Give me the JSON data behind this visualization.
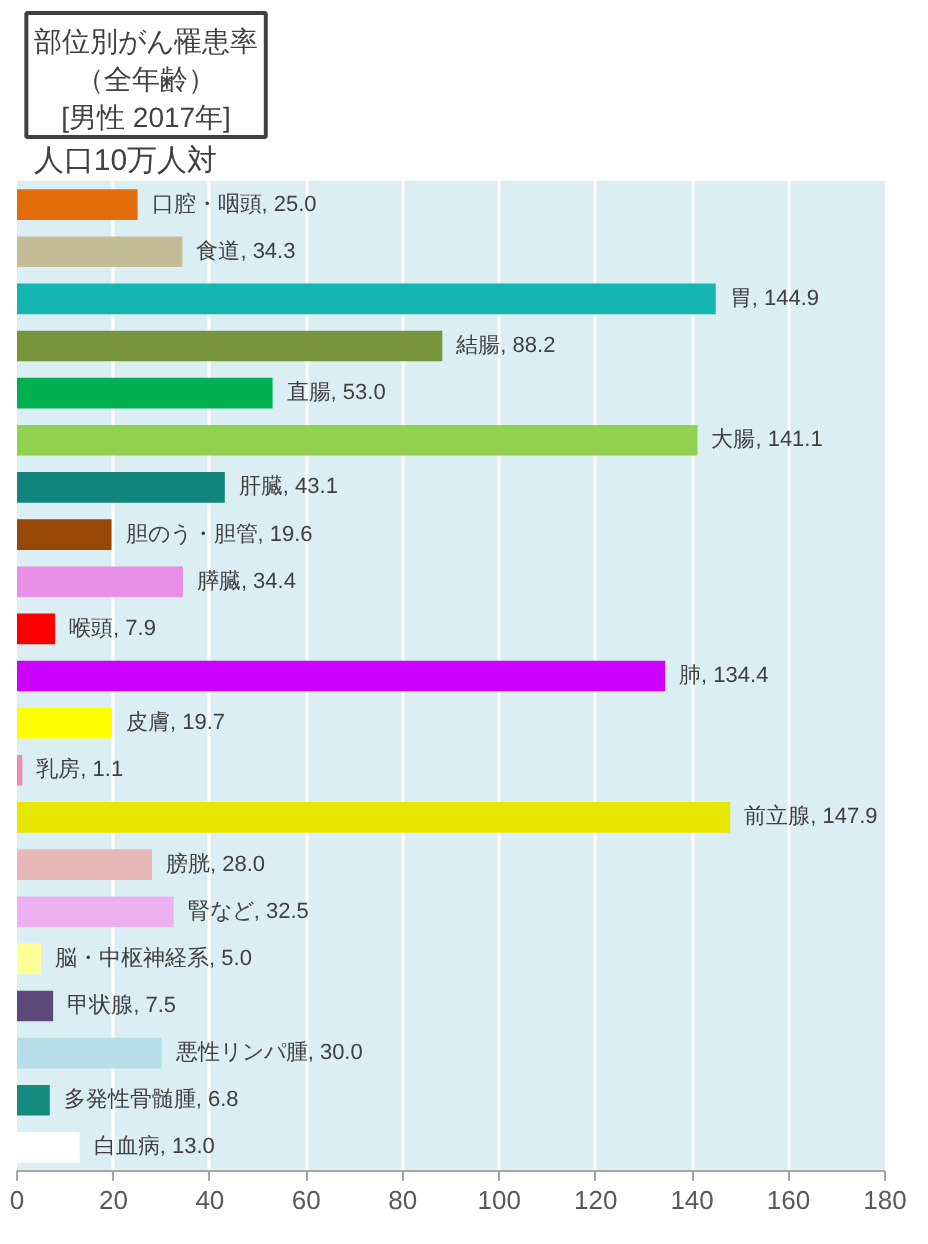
{
  "chart_data": {
    "type": "bar",
    "orientation": "horizontal",
    "title": "部位別がん罹患率（全年齢）",
    "subtitle": "[男性 2017年]",
    "annotations": [
      "人口10万人対"
    ],
    "categories": [
      "口腔・咽頭",
      "食道",
      "胃",
      "結腸",
      "直腸",
      "大腸",
      "肝臓",
      "胆のう・胆管",
      "膵臓",
      "喉頭",
      "肺",
      "皮膚",
      "乳房",
      "前立腺",
      "膀胱",
      "腎など",
      "脳・中枢神経系",
      "甲状腺",
      "悪性リンパ腫",
      "多発性骨髄腫",
      "白血病"
    ],
    "values": [
      25.0,
      34.3,
      144.9,
      88.2,
      53.0,
      141.1,
      43.1,
      19.6,
      34.4,
      7.9,
      134.4,
      19.7,
      1.1,
      147.9,
      28.0,
      32.5,
      5.0,
      7.5,
      30.0,
      6.8,
      13.0
    ],
    "value_labels": [
      ", 25.0",
      ", 34.3",
      ", 144.9",
      ", 88.2",
      ", 53.0",
      ", 141.1",
      ", 43.1",
      ", 19.6",
      ", 34.4",
      ", 7.9",
      ", 134.4",
      ", 19.7",
      ", 1.1",
      ", 147.9",
      ", 28.0",
      ", 32.5",
      ", 5.0",
      ", 7.5",
      ", 30.0",
      ", 6.8",
      ", 13.0"
    ],
    "colors": [
      "#e36c0a",
      "#c4bd97",
      "#14b4b0",
      "#77933c",
      "#00b050",
      "#92d050",
      "#11857e",
      "#984806",
      "#e88fe8",
      "#ff0000",
      "#cc00ff",
      "#ffff00",
      "#f08cb4",
      "#e6e600",
      "#e6b9b8",
      "#ecb0f0",
      "#ffff99",
      "#5f497a",
      "#b7dde8",
      "#138a7d",
      "#ffffff"
    ],
    "xlim": [
      0,
      180
    ],
    "xticks": [
      0,
      20,
      40,
      60,
      80,
      100,
      120,
      140,
      160,
      180
    ],
    "grid": "x",
    "tick_labels": "x"
  }
}
